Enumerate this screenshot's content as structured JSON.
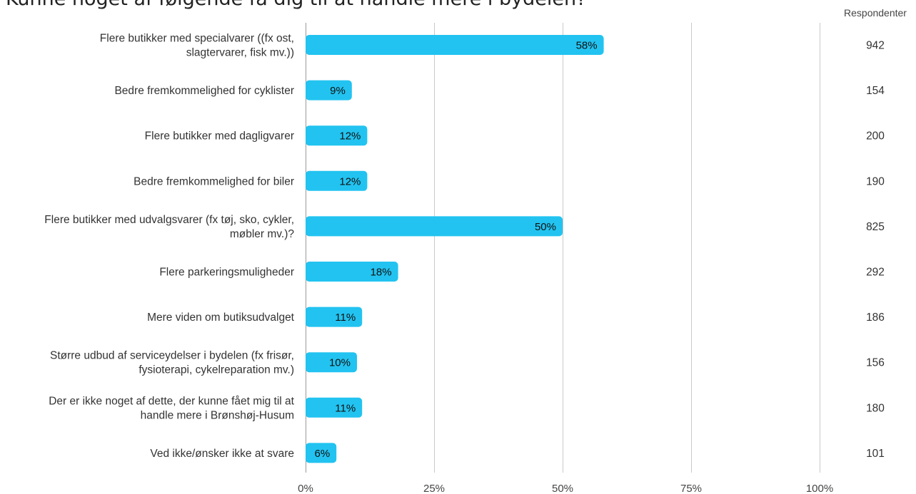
{
  "chart_data": {
    "type": "bar",
    "orientation": "horizontal",
    "title": "Kunne noget af følgende få dig til at handle mere i bydelen?",
    "categories": [
      [
        "Flere butikker med specialvarer ((fx ost,",
        "slagtervarer, fisk mv.))"
      ],
      [
        "Bedre fremkommelighed for cyklister"
      ],
      [
        "Flere butikker med dagligvarer"
      ],
      [
        "Bedre fremkommelighed for biler"
      ],
      [
        "Flere butikker med udvalgsvarer (fx tøj, sko, cykler,",
        "møbler mv.)?"
      ],
      [
        "Flere parkeringsmuligheder"
      ],
      [
        "Mere viden om butiksudvalget"
      ],
      [
        "Større udbud af serviceydelser i bydelen (fx frisør,",
        "fysioterapi, cykelreparation mv.)"
      ],
      [
        "Der er ikke noget af dette, der kunne fået mig til at",
        "handle mere i Brønshøj-Husum"
      ],
      [
        "Ved ikke/ønsker ikke at svare"
      ]
    ],
    "values": [
      58,
      9,
      12,
      12,
      50,
      18,
      11,
      10,
      11,
      6
    ],
    "value_labels": [
      "58%",
      "9%",
      "12%",
      "12%",
      "50%",
      "18%",
      "11%",
      "10%",
      "11%",
      "6%"
    ],
    "respondents_header": "Respondenter",
    "respondents": [
      "942",
      "154",
      "200",
      "190",
      "825",
      "292",
      "186",
      "156",
      "180",
      "101"
    ],
    "xlim": [
      0,
      100
    ],
    "xticks": [
      0,
      25,
      50,
      75,
      100
    ],
    "xtick_labels": [
      "0%",
      "25%",
      "50%",
      "75%",
      "100%"
    ],
    "grid": true,
    "bar_color": "#22c3f0",
    "grid_color": "#c9c9c9"
  }
}
